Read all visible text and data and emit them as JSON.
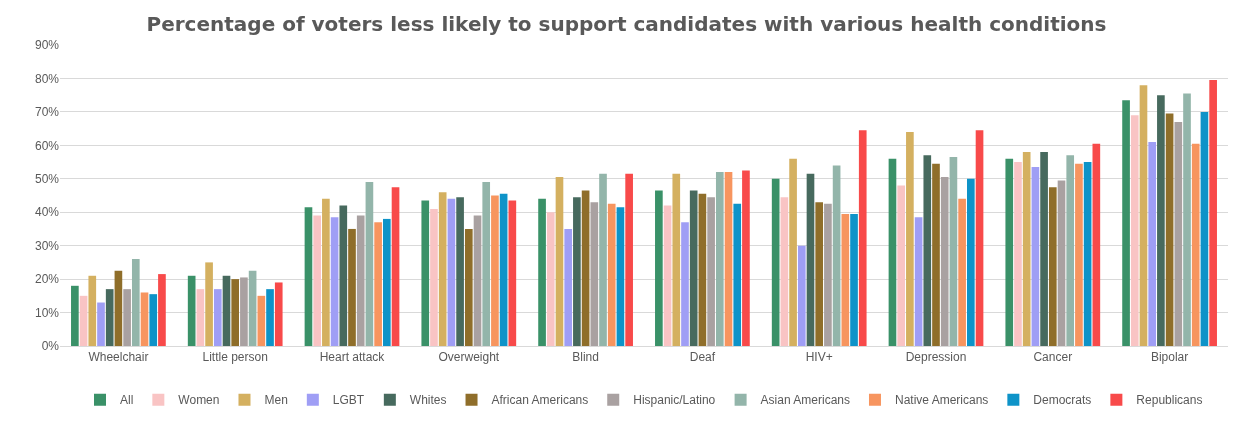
{
  "chart_data": {
    "type": "bar",
    "title": "Percentage of voters less likely to support candidates with various health conditions",
    "categories": [
      "Wheelchair",
      "Little person",
      "Heart attack",
      "Overweight",
      "Blind",
      "Deaf",
      "HIV+",
      "Depression",
      "Cancer",
      "Bipolar"
    ],
    "series": [
      {
        "name": "All",
        "color": "#3a9168",
        "values": [
          18,
          21,
          41.5,
          43.5,
          44,
          46.5,
          50,
          56,
          56,
          73.5
        ]
      },
      {
        "name": "Women",
        "color": "#f9c4c4",
        "values": [
          15,
          17,
          39,
          41,
          40,
          42,
          44.5,
          48,
          55,
          69
        ]
      },
      {
        "name": "Men",
        "color": "#d4b060",
        "values": [
          21,
          25,
          44,
          46,
          50.5,
          51.5,
          56,
          64,
          58,
          78
        ]
      },
      {
        "name": "LGBT",
        "color": "#9f9ef5",
        "values": [
          13,
          17,
          38.5,
          44,
          35,
          37,
          30,
          38.5,
          53.5,
          61
        ]
      },
      {
        "name": "Whites",
        "color": "#476a5e",
        "values": [
          17,
          21,
          42,
          44.5,
          44.5,
          46.5,
          51.5,
          57,
          58,
          75
        ]
      },
      {
        "name": "African Americans",
        "color": "#8f6e2a",
        "values": [
          22.5,
          20,
          35,
          35,
          46.5,
          45.5,
          43,
          54.5,
          47.5,
          69.5
        ]
      },
      {
        "name": "Hispanic/Latino",
        "color": "#a9a1a1",
        "values": [
          17,
          20.5,
          39,
          39,
          43,
          44.5,
          42.5,
          50.5,
          49.5,
          67
        ]
      },
      {
        "name": "Asian Americans",
        "color": "#93b5aa",
        "values": [
          26,
          22.5,
          49,
          49,
          51.5,
          52,
          54,
          56.5,
          57,
          75.5
        ]
      },
      {
        "name": "Native Americans",
        "color": "#f7955f",
        "values": [
          16,
          15,
          37,
          45,
          42.5,
          52,
          39.5,
          44,
          54.5,
          60.5
        ]
      },
      {
        "name": "Democrats",
        "color": "#0e93c8",
        "values": [
          15.5,
          17,
          38,
          45.5,
          41.5,
          42.5,
          39.5,
          50,
          55,
          70
        ]
      },
      {
        "name": "Republicans",
        "color": "#f84a4a",
        "values": [
          21.5,
          19,
          47.5,
          43.5,
          51.5,
          52.5,
          64.5,
          64.5,
          60.5,
          79.5
        ]
      }
    ],
    "ylim": [
      0,
      90
    ],
    "yticks": [
      {
        "value": 0,
        "label": "0%"
      },
      {
        "value": 10,
        "label": "10%"
      },
      {
        "value": 20,
        "label": "20%"
      },
      {
        "value": 30,
        "label": "30%"
      },
      {
        "value": 40,
        "label": "40%"
      },
      {
        "value": 50,
        "label": "50%"
      },
      {
        "value": 60,
        "label": "60%"
      },
      {
        "value": 70,
        "label": "70%"
      },
      {
        "value": 80,
        "label": "80%"
      },
      {
        "value": 90,
        "label": "90%"
      }
    ],
    "grid": "y",
    "legend": "bottom"
  }
}
